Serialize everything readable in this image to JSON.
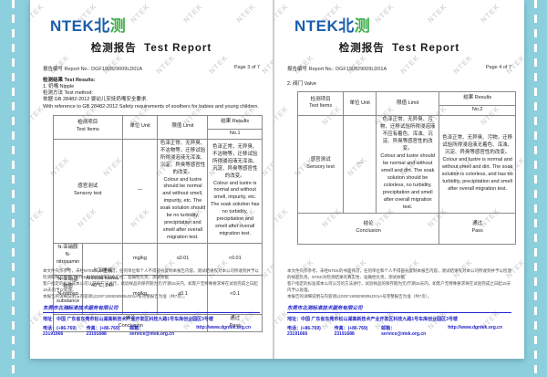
{
  "background": {
    "teal": "#8ccfdd"
  },
  "watermark": {
    "text": "NTEK"
  },
  "brand": {
    "logo_ntek": "NTEK",
    "logo_bei": "北",
    "logo_ce": "测",
    "title_cn": "检测报告",
    "title_en": "Test Report"
  },
  "footer": {
    "disclaimer_lines": [
      "本文件只作参考，未经NTEK的书面许可，任何单位和个人不得部分复制本报告内容。测试结果仅对本公司所收到并予以检测的样品负责。NTEK对检测结果的真实性、准确性负责，测试依据",
      "客户指定的标准或本公司认可的方法进行，试验样品的保存期为元/斤期15天内，如客户无特殊要求将在试验完成之日起15天内予以处理。",
      "本报告的详细说明与内容请以DGF190829009LD01A号完整报告为准（共7页）。"
    ],
    "company": "东莞市北测标准技术服务有限公司",
    "address": "地址：中国 广东省东莞市松山湖高新技术产业开发区科技九路1号车库创业园区3号楼",
    "tel": "电话：(+86-769) 23191666",
    "fax": "传真：(+86-769) 23191688",
    "email": "邮箱：service@ntek.org.cn",
    "website": "http://www.dgntek.org.cn"
  },
  "pages": [
    {
      "report_no_label": "报告编号 Report No.: DGF190829009LD01A",
      "page_label": "Page 3 of 7",
      "results_heading": "检测结果 Test Results:",
      "sample_line": "1. 奶嘴 Nipple",
      "method_label": "检测方法 Test method:",
      "method_cn": "依据 GB 28482-2012 婴幼儿安抚奶嘴安全要求.",
      "method_en": "With reference to GB 28482-2012 Safety requirements of soothers for babies and young children.",
      "table": {
        "col_item_cn": "检测项目",
        "col_item_en": "Test Items",
        "col_unit": "单位 Unit",
        "col_limit": "限值 Limit",
        "col_results": "结果 Results",
        "col_results_no": "No.1",
        "sensory_cn": "感官测试",
        "sensory_en": "Sensory test",
        "sensory_unit": "—",
        "sensory_limit_cn": "色泽正常、无异臭、不洁物等，迁移试验所得浸泡液无浑浊、沉淀、异臭等感官性的改变。",
        "sensory_limit_en": "Colour and lustre should be normal and without smell, impurity, etc. The soak solution should be no turbidity, precipitation and smell after overall migration test.",
        "sensory_result_cn": "色泽正常，无异臭、不洁物等，迁移试验所得浸泡液无浑浊、沉淀、异臭等感官性的改变。",
        "sensory_result_en": "Colour and lustre is normal and without smell, impurity, etc. The soak solution has no turbidity, precipitation and smell after overall migration test.",
        "row1_name_cn": "N-亚硝胺",
        "row1_name_en": "N-nitrosamine",
        "cond_cn": "人工唾液",
        "cond_en": "Artificial saliva,",
        "cond_2": "40℃, 24h",
        "row1_unit": "mg/kg",
        "row1_limit": "≤0.01",
        "row1_result": "<0.01",
        "row2_name_cn": "N-亚硝基物质",
        "row2_name_en1": "N-nitroso",
        "row2_name_en2": "substances",
        "row2_unit": "mg/kg",
        "row2_limit": "≤0.1",
        "row2_result": "<0.1",
        "conclusion_cn": "结论",
        "conclusion_en": "Conclusion",
        "verdict_cn": "通过",
        "verdict_en": "Pass"
      }
    },
    {
      "report_no_label": "报告编号 Report No.: DGF190829009LD01A",
      "page_label": "Page 4 of 7",
      "section_line": "2. 阀门 Valve",
      "table": {
        "col_item_cn": "检测项目",
        "col_item_en": "Test Items",
        "col_unit": "单位 Unit",
        "col_limit": "限值 Limit",
        "col_results": "结果 Results",
        "col_results_no": "No.2",
        "sensory_cn": "感官测试",
        "sensory_en": "Sensory test",
        "sensory_unit": "—",
        "sensory_limit_cn": "色泽正常、无异臭、污物，迁移试验所得浸泡液不应有着色、浑浊、沉淀、异臭等感官性的改变。",
        "sensory_limit_en": "Colour and lustre should be normal and without smell and dirt. The soak solution should be colorless, no turbidity, precipitation and smell after overall migration test.",
        "sensory_result_cn": "色泽正常、无异臭、污物，迁移试验所得浸泡液无着色、浑浊、沉淀、异臭等感官性的改变。",
        "sensory_result_en": "Colour and lustre is normal and without smell and dirt. The soak solution is colorless, and has no turbidity, precipitation and smell after overall migration test.",
        "conclusion_cn": "结论",
        "conclusion_en": "Conclusion",
        "verdict_cn": "通过",
        "verdict_en": "Pass"
      }
    }
  ]
}
